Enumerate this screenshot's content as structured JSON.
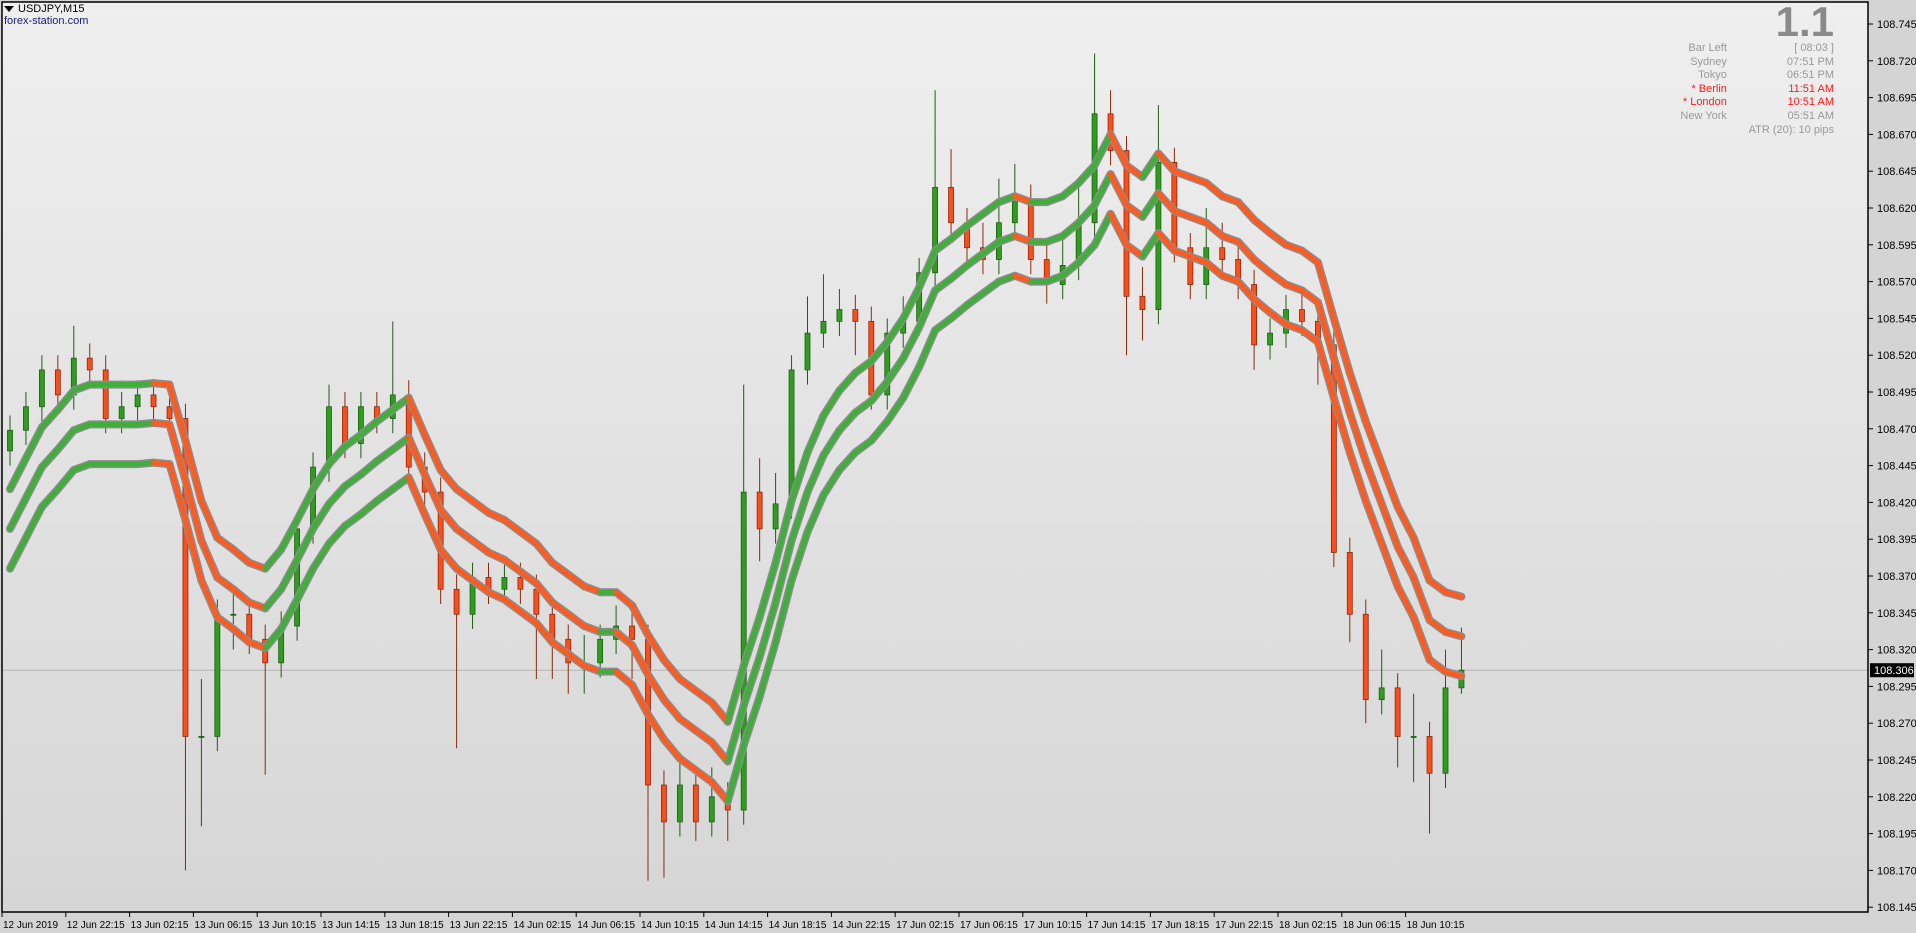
{
  "header": {
    "symbol": "USDJPY,M15",
    "site": "forex-station.com"
  },
  "info_panel": {
    "version": "1.1",
    "rows": [
      {
        "label": "Bar Left",
        "value": "[ 08:03 ]",
        "highlight": false
      },
      {
        "label": "Sydney",
        "value": "07:51 PM",
        "highlight": false
      },
      {
        "label": "Tokyo",
        "value": "06:51 PM",
        "highlight": false
      },
      {
        "label": "* Berlin",
        "value": "11:51 AM",
        "highlight": true
      },
      {
        "label": "* London",
        "value": "10:51 AM",
        "highlight": true
      },
      {
        "label": "New York",
        "value": "05:51 AM",
        "highlight": false
      }
    ],
    "atr": "ATR (20): 10 pips"
  },
  "colors": {
    "bull": "#2f9e1f",
    "bull_edge": "#1d5e12",
    "bear": "#ff4d1a",
    "bear_edge": "#8a2a0c",
    "band_up": "#3fae3a",
    "band_down": "#ff5a1f",
    "band_shadow": "#8c8c8c",
    "price_line": "#b4b4b4",
    "price_label_bg": "#000000",
    "price_label_fg": "#ffffff"
  },
  "chart_data": {
    "type": "candlestick",
    "note_resolution": "hourly",
    "ylim": [
      108.142,
      108.76
    ],
    "yticks": [
      "108.745",
      "108.720",
      "108.695",
      "108.670",
      "108.645",
      "108.620",
      "108.595",
      "108.570",
      "108.545",
      "108.520",
      "108.495",
      "108.470",
      "108.445",
      "108.420",
      "108.395",
      "108.370",
      "108.345",
      "108.320",
      "108.295",
      "108.270",
      "108.245",
      "108.220",
      "108.195",
      "108.170",
      "108.145"
    ],
    "xticks": [
      "12 Jun 2019",
      "12 Jun 22:15",
      "13 Jun 02:15",
      "13 Jun 06:15",
      "13 Jun 10:15",
      "13 Jun 14:15",
      "13 Jun 18:15",
      "13 Jun 22:15",
      "14 Jun 02:15",
      "14 Jun 06:15",
      "14 Jun 10:15",
      "14 Jun 14:15",
      "14 Jun 18:15",
      "14 Jun 22:15",
      "17 Jun 02:15",
      "17 Jun 06:15",
      "17 Jun 10:15",
      "17 Jun 14:15",
      "17 Jun 18:15",
      "17 Jun 22:15",
      "18 Jun 02:15",
      "18 Jun 06:15",
      "18 Jun 10:15"
    ],
    "current_price": "108.306",
    "open_first": 108.455,
    "close": [
      108.469,
      108.485,
      108.51,
      108.493,
      108.518,
      108.51,
      108.477,
      108.485,
      108.493,
      108.485,
      108.477,
      108.261,
      108.261,
      108.344,
      108.344,
      108.327,
      108.311,
      108.336,
      108.402,
      108.444,
      108.485,
      108.46,
      108.485,
      108.477,
      108.493,
      108.444,
      108.427,
      108.361,
      108.344,
      108.369,
      108.361,
      108.369,
      108.361,
      108.344,
      108.327,
      108.311,
      108.311,
      108.327,
      108.336,
      108.327,
      108.228,
      108.203,
      108.228,
      108.203,
      108.22,
      108.211,
      108.427,
      108.402,
      108.419,
      108.51,
      108.535,
      108.543,
      108.551,
      108.543,
      108.493,
      108.535,
      108.543,
      108.576,
      108.634,
      108.61,
      108.593,
      108.585,
      108.61,
      108.626,
      108.585,
      108.568,
      108.581,
      108.61,
      108.684,
      108.659,
      108.56,
      108.551,
      108.651,
      108.593,
      108.568,
      108.593,
      108.585,
      108.568,
      108.527,
      108.535,
      108.551,
      108.543,
      108.527,
      108.386,
      108.344,
      108.286,
      108.294,
      108.261,
      108.261,
      108.236,
      108.294,
      108.306
    ],
    "high": [
      108.479,
      108.495,
      108.52,
      108.52,
      108.54,
      108.528,
      108.52,
      108.495,
      108.503,
      108.503,
      108.495,
      108.487,
      108.3,
      108.354,
      108.36,
      108.354,
      108.337,
      108.346,
      108.412,
      108.454,
      108.5,
      108.495,
      108.495,
      108.495,
      108.543,
      108.503,
      108.454,
      108.437,
      108.371,
      108.379,
      108.379,
      108.379,
      108.379,
      108.371,
      108.354,
      108.337,
      108.33,
      108.337,
      108.35,
      108.346,
      108.337,
      108.238,
      108.25,
      108.238,
      108.24,
      108.23,
      108.5,
      108.45,
      108.44,
      108.52,
      108.56,
      108.575,
      108.565,
      108.561,
      108.553,
      108.545,
      108.56,
      108.586,
      108.7,
      108.66,
      108.62,
      108.61,
      108.64,
      108.65,
      108.636,
      108.595,
      108.6,
      108.64,
      108.725,
      108.7,
      108.669,
      108.58,
      108.69,
      108.661,
      108.603,
      108.62,
      108.61,
      108.6,
      108.578,
      108.545,
      108.561,
      108.561,
      108.553,
      108.537,
      108.396,
      108.354,
      108.32,
      108.304,
      108.29,
      108.271,
      108.32,
      108.335
    ],
    "low": [
      108.445,
      108.459,
      108.475,
      108.483,
      108.483,
      108.5,
      108.467,
      108.467,
      108.475,
      108.475,
      108.467,
      108.17,
      108.2,
      108.251,
      108.32,
      108.317,
      108.235,
      108.301,
      108.326,
      108.392,
      108.434,
      108.45,
      108.45,
      108.467,
      108.467,
      108.434,
      108.417,
      108.351,
      108.253,
      108.334,
      108.351,
      108.351,
      108.351,
      108.3,
      108.3,
      108.29,
      108.29,
      108.301,
      108.317,
      108.3,
      108.163,
      108.165,
      108.193,
      108.19,
      108.193,
      108.19,
      108.201,
      108.38,
      108.392,
      108.409,
      108.5,
      108.525,
      108.533,
      108.52,
      108.483,
      108.483,
      108.525,
      108.533,
      108.566,
      108.6,
      108.583,
      108.575,
      108.575,
      108.6,
      108.575,
      108.555,
      108.558,
      108.571,
      108.6,
      108.649,
      108.52,
      108.53,
      108.541,
      108.583,
      108.558,
      108.558,
      108.575,
      108.558,
      108.51,
      108.517,
      108.525,
      108.533,
      108.5,
      108.376,
      108.325,
      108.27,
      108.276,
      108.24,
      108.23,
      108.195,
      108.226,
      108.29
    ],
    "band_middle": [
      108.402,
      108.423,
      108.444,
      108.456,
      108.469,
      108.473,
      108.473,
      108.473,
      108.473,
      108.474,
      108.473,
      108.435,
      108.394,
      108.369,
      108.361,
      108.352,
      108.348,
      108.361,
      108.381,
      108.402,
      108.419,
      108.431,
      108.439,
      108.448,
      108.456,
      108.464,
      108.439,
      108.415,
      108.402,
      108.394,
      108.386,
      108.381,
      108.373,
      108.365,
      108.352,
      108.344,
      108.336,
      108.332,
      108.332,
      108.323,
      108.303,
      108.286,
      108.273,
      108.265,
      108.257,
      108.244,
      108.282,
      108.315,
      108.352,
      108.394,
      108.427,
      108.452,
      108.469,
      108.481,
      108.489,
      108.502,
      108.518,
      108.539,
      108.564,
      108.572,
      108.581,
      108.589,
      108.597,
      108.601,
      108.597,
      108.597,
      108.601,
      108.61,
      108.622,
      108.643,
      108.622,
      108.614,
      108.63,
      108.618,
      108.614,
      108.61,
      108.601,
      108.597,
      108.585,
      108.576,
      108.568,
      108.564,
      108.556,
      108.518,
      108.481,
      108.448,
      108.419,
      108.39,
      108.369,
      108.34,
      108.332,
      108.329
    ],
    "band_offset": 0.027
  }
}
